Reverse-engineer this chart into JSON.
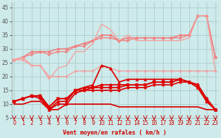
{
  "xlabel": "Vent moyen/en rafales ( km/h )",
  "background_color": "#ceeaea",
  "grid_color": "#aacccc",
  "x_ticks": [
    0,
    1,
    2,
    3,
    4,
    5,
    6,
    7,
    8,
    9,
    10,
    11,
    12,
    13,
    14,
    15,
    16,
    17,
    18,
    19,
    20,
    21,
    22,
    23
  ],
  "ylim": [
    5,
    47
  ],
  "xlim": [
    -0.3,
    23.3
  ],
  "yticks": [
    5,
    10,
    15,
    20,
    25,
    30,
    35,
    40,
    45
  ],
  "lines": [
    {
      "x": [
        0,
        1,
        2,
        3,
        4,
        5,
        6,
        7,
        8,
        9,
        10,
        11,
        12,
        13,
        14,
        15,
        16,
        17,
        18,
        19,
        20,
        21,
        22,
        23
      ],
      "y": [
        26,
        27,
        29,
        29,
        29,
        30,
        30,
        31,
        32,
        33,
        35,
        35,
        33,
        34,
        34,
        34,
        34,
        34,
        34,
        35,
        35,
        42,
        42,
        27
      ],
      "color": "#f08080",
      "lw": 1.2,
      "marker": "D",
      "ms": 2.5
    },
    {
      "x": [
        0,
        1,
        2,
        3,
        4,
        5,
        6,
        7,
        8,
        9,
        10,
        11,
        12,
        13,
        14,
        15,
        16,
        17,
        18,
        19,
        20,
        21,
        22,
        23
      ],
      "y": [
        26,
        27,
        28,
        29,
        28,
        29,
        29,
        31,
        31,
        33,
        34,
        34,
        33,
        33,
        34,
        34,
        34,
        34,
        34,
        34,
        35,
        42,
        42,
        27
      ],
      "color": "#f08080",
      "lw": 1.0,
      "marker": ">",
      "ms": 2.5
    },
    {
      "x": [
        0,
        1,
        2,
        3,
        4,
        5,
        6,
        7,
        8,
        9,
        10,
        11,
        12,
        13,
        14,
        15,
        16,
        17,
        18,
        19,
        20,
        21,
        22,
        23
      ],
      "y": [
        26,
        27,
        24,
        24,
        19,
        23,
        24,
        29,
        29,
        32,
        39,
        37,
        33,
        35,
        33,
        33,
        33,
        33,
        33,
        33,
        34,
        42,
        42,
        22
      ],
      "color": "#f4a0a0",
      "lw": 1.0,
      "marker": null,
      "ms": 0
    },
    {
      "x": [
        0,
        1,
        2,
        3,
        4,
        5,
        6,
        7,
        8,
        9,
        10,
        11,
        12,
        13,
        14,
        15,
        16,
        17,
        18,
        19,
        20,
        21,
        22,
        23
      ],
      "y": [
        26,
        26,
        24,
        24,
        20,
        20,
        20,
        22,
        22,
        22,
        24,
        23,
        22,
        22,
        22,
        22,
        22,
        22,
        22,
        22,
        22,
        22,
        22,
        22
      ],
      "color": "#f4a0a0",
      "lw": 1.0,
      "marker": "D",
      "ms": 2.0
    },
    {
      "x": [
        0,
        1,
        2,
        3,
        4,
        5,
        6,
        7,
        8,
        9,
        10,
        11,
        12,
        13,
        14,
        15,
        16,
        17,
        18,
        19,
        20,
        21,
        22,
        23
      ],
      "y": [
        11,
        12,
        13,
        13,
        8,
        11,
        11,
        15,
        16,
        17,
        24,
        23,
        18,
        19,
        19,
        19,
        19,
        19,
        19,
        19,
        18,
        16,
        11,
        8
      ],
      "color": "#dd0000",
      "lw": 1.3,
      "marker": "^",
      "ms": 3.0
    },
    {
      "x": [
        0,
        1,
        2,
        3,
        4,
        5,
        6,
        7,
        8,
        9,
        10,
        11,
        12,
        13,
        14,
        15,
        16,
        17,
        18,
        19,
        20,
        21,
        22,
        23
      ],
      "y": [
        11,
        12,
        13,
        13,
        9,
        12,
        12,
        15,
        16,
        16,
        17,
        17,
        17,
        17,
        17,
        17,
        18,
        18,
        18,
        19,
        18,
        17,
        12,
        8
      ],
      "color": "#dd0000",
      "lw": 1.3,
      "marker": "D",
      "ms": 2.5
    },
    {
      "x": [
        0,
        1,
        2,
        3,
        4,
        5,
        6,
        7,
        8,
        9,
        10,
        11,
        12,
        13,
        14,
        15,
        16,
        17,
        18,
        19,
        20,
        21,
        22,
        23
      ],
      "y": [
        11,
        12,
        13,
        13,
        9,
        12,
        12,
        15,
        15,
        16,
        16,
        16,
        16,
        17,
        17,
        17,
        18,
        18,
        18,
        19,
        18,
        17,
        12,
        8
      ],
      "color": "#dd0000",
      "lw": 1.3,
      "marker": "s",
      "ms": 2.5
    },
    {
      "x": [
        0,
        1,
        2,
        3,
        4,
        5,
        6,
        7,
        8,
        9,
        10,
        11,
        12,
        13,
        14,
        15,
        16,
        17,
        18,
        19,
        20,
        21,
        22,
        23
      ],
      "y": [
        11,
        12,
        13,
        12,
        8,
        10,
        10,
        14,
        15,
        15,
        15,
        15,
        15,
        16,
        16,
        16,
        17,
        17,
        17,
        18,
        18,
        16,
        11,
        8
      ],
      "color": "#dd0000",
      "lw": 1.3,
      "marker": "o",
      "ms": 2.5
    },
    {
      "x": [
        0,
        1,
        2,
        3,
        4,
        5,
        6,
        7,
        8,
        9,
        10,
        11,
        12,
        13,
        14,
        15,
        16,
        17,
        18,
        19,
        20,
        21,
        22,
        23
      ],
      "y": [
        10,
        10,
        11,
        11,
        8,
        8,
        10,
        10,
        10,
        10,
        10,
        10,
        9,
        9,
        9,
        9,
        9,
        9,
        9,
        9,
        9,
        9,
        8,
        8
      ],
      "color": "#dd0000",
      "lw": 1.3,
      "marker": null,
      "ms": 0
    }
  ]
}
